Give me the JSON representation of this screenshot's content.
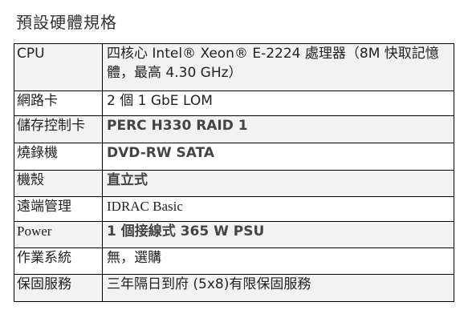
{
  "title": "預設硬體規格",
  "rows": [
    {
      "label": "CPU",
      "value": "四核心 Intel® Xeon® E-2224 處理器（8M 快取記憶體，最高 4.30 GHz）"
    },
    {
      "label": "網路卡",
      "value": "2 個 1 GbE LOM"
    },
    {
      "label": "儲存控制卡",
      "value": "PERC H330 RAID 1"
    },
    {
      "label": "燒錄機",
      "value": "DVD-RW SATA"
    },
    {
      "label": "機殼",
      "value": "直立式"
    },
    {
      "label": "遠端管理",
      "value": "IDRAC Basic"
    },
    {
      "label": "Power",
      "value": "1 個接線式 365 W PSU"
    },
    {
      "label": "作業系統",
      "value": "無，選購"
    },
    {
      "label": "保固服務",
      "value": "三年隔日到府 (5x8)有限保固服務"
    }
  ],
  "colors": {
    "shaded_row": "#f2f2f2",
    "border": "#000000",
    "text": "#222222"
  }
}
